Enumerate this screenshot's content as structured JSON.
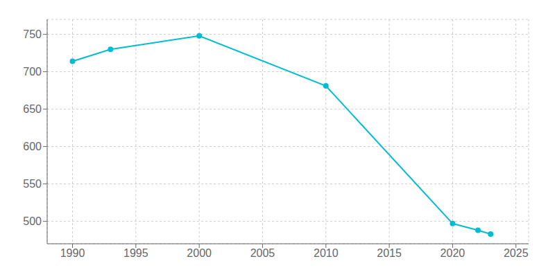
{
  "chart_data": {
    "type": "line",
    "x": [
      1990,
      1993,
      2000,
      2010,
      2020,
      2022,
      2023
    ],
    "values": [
      714,
      730,
      748,
      681,
      497,
      488,
      483
    ],
    "color": "#00bcd4",
    "marker": "o",
    "xlim": [
      1988,
      2026
    ],
    "ylim": [
      470,
      770
    ],
    "xticks": [
      1990,
      1995,
      2000,
      2005,
      2010,
      2015,
      2020,
      2025
    ],
    "yticks": [
      500,
      550,
      600,
      650,
      700,
      750
    ],
    "grid": true
  }
}
